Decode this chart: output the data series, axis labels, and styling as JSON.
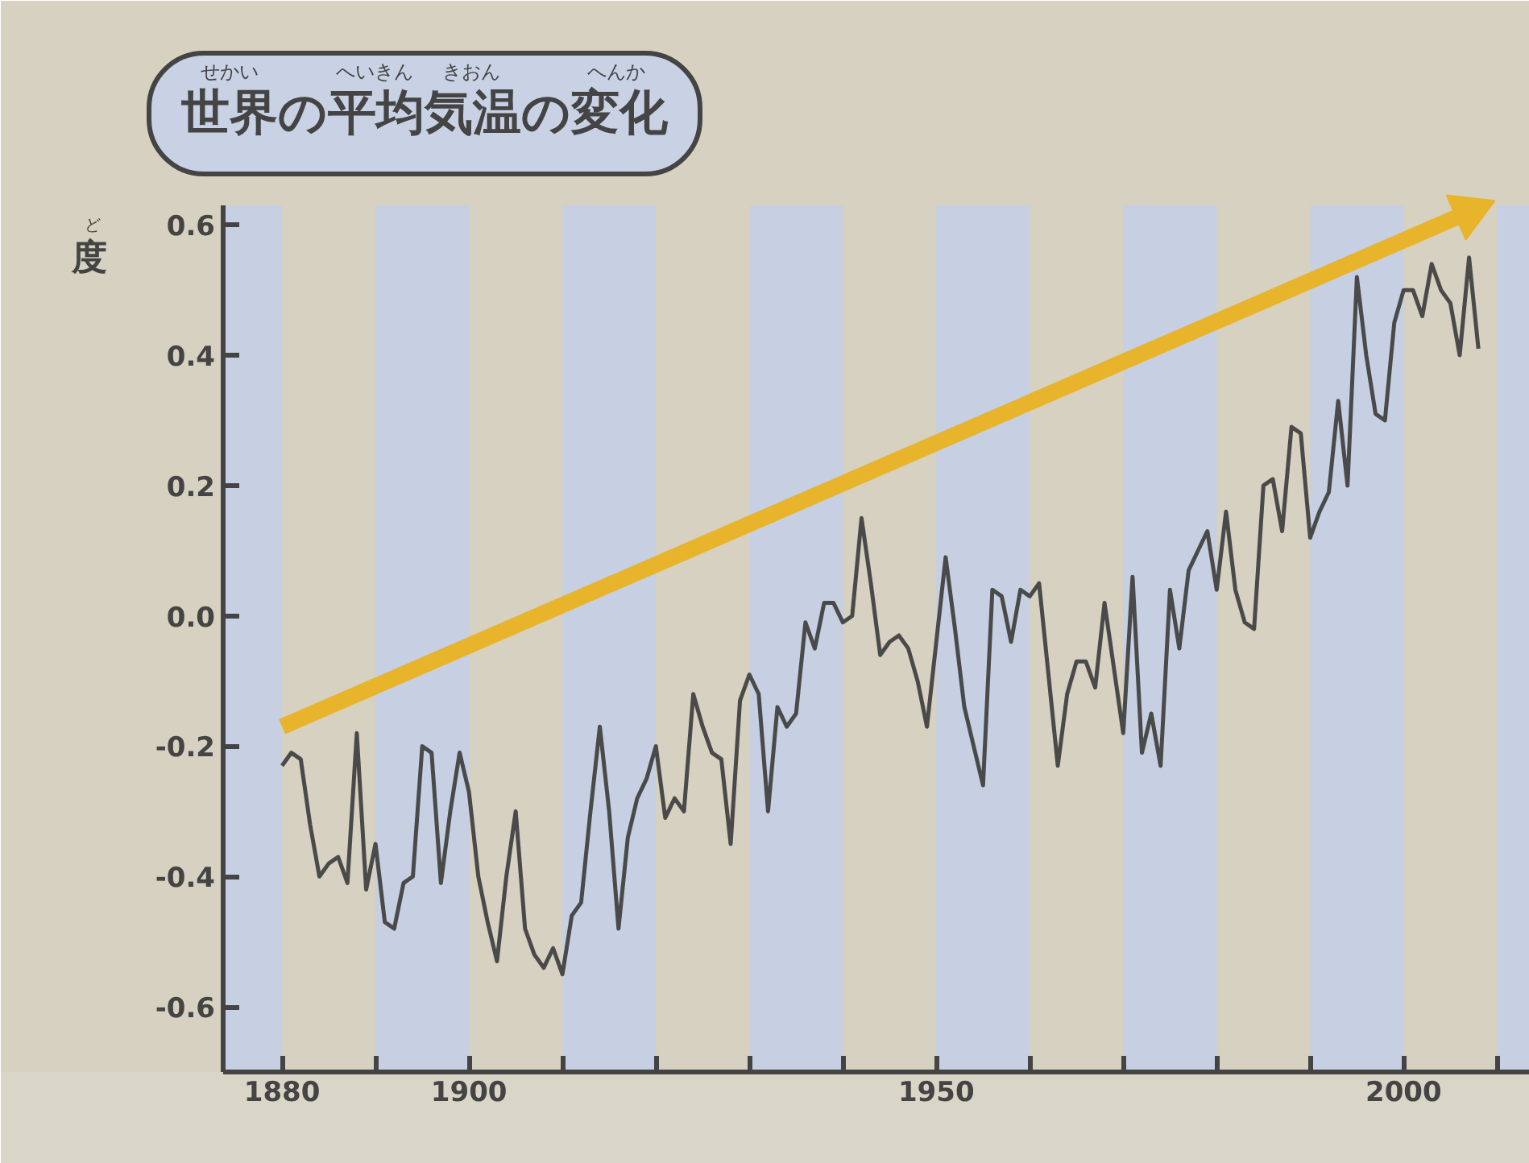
{
  "chart_data": {
    "type": "line",
    "title": "世界の平均気温の変化",
    "ylabel": "度",
    "annotations": [
      "せかい",
      "へいきん",
      "きおん",
      "へんか",
      "ど"
    ],
    "xlim": [
      1873.7,
      2013.5
    ],
    "ylim": [
      -0.7,
      0.63
    ],
    "xticks": [
      1880,
      {
        "value": 1890,
        "label": null
      },
      1900,
      {
        "value": 1910,
        "label": null
      },
      {
        "value": 1920,
        "label": null
      },
      {
        "value": 1930,
        "label": null
      },
      {
        "value": 1940,
        "label": null
      },
      1950,
      {
        "value": 1960,
        "label": null
      },
      {
        "value": 1970,
        "label": null
      },
      {
        "value": 1980,
        "label": null
      },
      {
        "value": 1990,
        "label": null
      },
      2000,
      {
        "value": 2010,
        "label": null
      }
    ],
    "yticks": [
      -0.6,
      -0.4,
      -0.2,
      {
        "value": 0,
        "label": "0.0"
      },
      0.2,
      0.4,
      0.6
    ],
    "bands": [
      {
        "axis": "x",
        "from": 1873.7,
        "to": 1880,
        "color": "#c6d0e2"
      },
      {
        "axis": "x",
        "from": 1890,
        "to": 1900,
        "color": "#c6d0e2"
      },
      {
        "axis": "x",
        "from": 1910,
        "to": 1920,
        "color": "#c6d0e2"
      },
      {
        "axis": "x",
        "from": 1930,
        "to": 1940,
        "color": "#c6d0e2"
      },
      {
        "axis": "x",
        "from": 1950,
        "to": 1960,
        "color": "#c6d0e2"
      },
      {
        "axis": "x",
        "from": 1970,
        "to": 1980,
        "color": "#c6d0e2"
      },
      {
        "axis": "x",
        "from": 1990,
        "to": 2000,
        "color": "#c6d0e2"
      },
      {
        "axis": "x",
        "from": 2010,
        "to": 2013.5,
        "color": "#c6d0e2"
      }
    ],
    "x": [
      1880,
      1881,
      1882,
      1883,
      1884,
      1885,
      1886,
      1887,
      1888,
      1889,
      1890,
      1891,
      1892,
      1893,
      1894,
      1895,
      1896,
      1897,
      1898,
      1899,
      1900,
      1901,
      1902,
      1903,
      1904,
      1905,
      1906,
      1907,
      1908,
      1909,
      1910,
      1911,
      1912,
      1913,
      1914,
      1915,
      1916,
      1917,
      1918,
      1919,
      1920,
      1921,
      1922,
      1923,
      1924,
      1925,
      1926,
      1927,
      1928,
      1929,
      1930,
      1931,
      1932,
      1933,
      1934,
      1935,
      1936,
      1937,
      1938,
      1939,
      1940,
      1941,
      1942,
      1943,
      1944,
      1945,
      1946,
      1947,
      1948,
      1949,
      1950,
      1951,
      1952,
      1953,
      1954,
      1955,
      1956,
      1957,
      1958,
      1959,
      1960,
      1961,
      1962,
      1963,
      1964,
      1965,
      1966,
      1967,
      1968,
      1969,
      1970,
      1971,
      1972,
      1973,
      1974,
      1975,
      1976,
      1977,
      1978,
      1979,
      1980,
      1981,
      1982,
      1983,
      1984,
      1985,
      1986,
      1987,
      1988,
      1989,
      1990,
      1991,
      1992,
      1993,
      1994,
      1995,
      1996,
      1997,
      1998,
      1999,
      2000,
      2001,
      2002,
      2003,
      2004,
      2005,
      2006,
      2007,
      2008
    ],
    "series": [
      {
        "color": "#4a4a4a",
        "values": [
          -0.23,
          -0.21,
          -0.22,
          -0.32,
          -0.4,
          -0.38,
          -0.37,
          -0.41,
          -0.18,
          -0.42,
          -0.35,
          -0.47,
          -0.48,
          -0.41,
          -0.4,
          -0.2,
          -0.21,
          -0.41,
          -0.3,
          -0.21,
          -0.27,
          -0.4,
          -0.47,
          -0.53,
          -0.4,
          -0.3,
          -0.48,
          -0.52,
          -0.54,
          -0.51,
          -0.55,
          -0.46,
          -0.44,
          -0.3,
          -0.17,
          -0.3,
          -0.48,
          -0.34,
          -0.28,
          -0.25,
          -0.2,
          -0.31,
          -0.28,
          -0.3,
          -0.12,
          -0.17,
          -0.21,
          -0.22,
          -0.35,
          -0.13,
          -0.09,
          -0.12,
          -0.3,
          -0.14,
          -0.17,
          -0.15,
          -0.01,
          -0.05,
          0.02,
          0.02,
          -0.01,
          0.0,
          0.15,
          0.05,
          -0.06,
          -0.04,
          -0.03,
          -0.05,
          -0.1,
          -0.17,
          -0.04,
          0.09,
          -0.02,
          -0.14,
          -0.2,
          -0.26,
          0.04,
          0.03,
          -0.04,
          0.04,
          0.03,
          0.05,
          -0.09,
          -0.23,
          -0.12,
          -0.07,
          -0.07,
          -0.11,
          0.02,
          -0.08,
          -0.18,
          0.06,
          -0.21,
          -0.15,
          -0.23,
          0.04,
          -0.05,
          0.07,
          0.1,
          0.13,
          0.04,
          0.16,
          0.04,
          -0.01,
          -0.02,
          0.2,
          0.21,
          0.13,
          0.29,
          0.28,
          0.12,
          0.16,
          0.19,
          0.33,
          0.2,
          0.52,
          0.4,
          0.31,
          0.3,
          0.45,
          0.5,
          0.5,
          0.46,
          0.54,
          0.5,
          0.48,
          0.4,
          0.55,
          0.41
        ]
      },
      {
        "type": "line",
        "color": "#e8b42c",
        "x": [
          1880,
          2007
        ],
        "values": [
          -0.17,
          0.62
        ]
      }
    ]
  }
}
